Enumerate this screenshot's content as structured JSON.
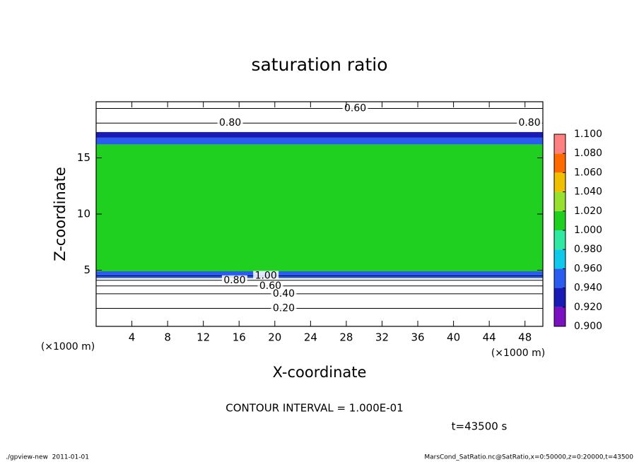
{
  "chart_data": {
    "type": "contour",
    "title": "saturation ratio",
    "x_label": "X-coordinate",
    "y_label": "Z-coordinate",
    "x_unit": "(×1000 m)",
    "y_unit": "(×1000 m)",
    "xlim": [
      0,
      50
    ],
    "ylim": [
      0,
      20
    ],
    "xticks": [
      4,
      8,
      12,
      16,
      20,
      24,
      28,
      32,
      36,
      40,
      44,
      48
    ],
    "yticks": [
      5,
      10,
      15
    ],
    "field": [
      {
        "zlim": [
          4.3,
          16.2
        ],
        "value": 1.0
      },
      {
        "zlim": [
          4.3,
          4.9
        ],
        "value": 0.95
      },
      {
        "zlim": [
          16.2,
          16.8
        ],
        "value": 0.95
      },
      {
        "zlim": [
          16.8,
          17.3
        ],
        "value": 0.93
      }
    ],
    "colorbar": {
      "levels": [
        {
          "value": 0.9,
          "label": "0.900"
        },
        {
          "value": 0.92,
          "label": "0.920"
        },
        {
          "value": 0.94,
          "label": "0.940"
        },
        {
          "value": 0.96,
          "label": "0.960"
        },
        {
          "value": 0.98,
          "label": "0.980"
        },
        {
          "value": 1.0,
          "label": "1.000"
        },
        {
          "value": 1.02,
          "label": "1.020"
        },
        {
          "value": 1.04,
          "label": "1.040"
        },
        {
          "value": 1.06,
          "label": "1.060"
        },
        {
          "value": 1.08,
          "label": "1.080"
        },
        {
          "value": 1.1,
          "label": "1.100"
        }
      ],
      "colors": [
        "#7a10c0",
        "#1a1ab4",
        "#2a5cf0",
        "#10c8e8",
        "#30e8a0",
        "#20d020",
        "#98e030",
        "#f0c000",
        "#ff6a00",
        "#ff8080"
      ]
    },
    "contours": [
      {
        "level": 0.6,
        "label": "0.60",
        "z": 19.4,
        "label_x": [
          29
        ]
      },
      {
        "level": 0.8,
        "label": "0.80",
        "z": 18.1,
        "label_x": [
          15,
          48.5
        ]
      },
      {
        "level": 1.0,
        "label": "1.00",
        "z": 4.5,
        "label_x": [
          19
        ]
      },
      {
        "level": 0.8,
        "label": "0.80",
        "z": 4.1,
        "label_x": [
          15.5
        ]
      },
      {
        "level": 0.6,
        "label": "0.60",
        "z": 3.6,
        "label_x": [
          19.5
        ]
      },
      {
        "level": 0.4,
        "label": "0.40",
        "z": 2.9,
        "label_x": [
          21
        ]
      },
      {
        "level": 0.2,
        "label": "0.20",
        "z": 1.6,
        "label_x": [
          21
        ]
      }
    ],
    "footnote": "CONTOUR INTERVAL = 1.000E-01",
    "time_label": "t=43500 s",
    "footer_left": "./gpview-new  2011-01-01",
    "footer_right": "MarsCond_SatRatio.nc@SatRatio,x=0:50000,z=0:20000,t=43500"
  }
}
